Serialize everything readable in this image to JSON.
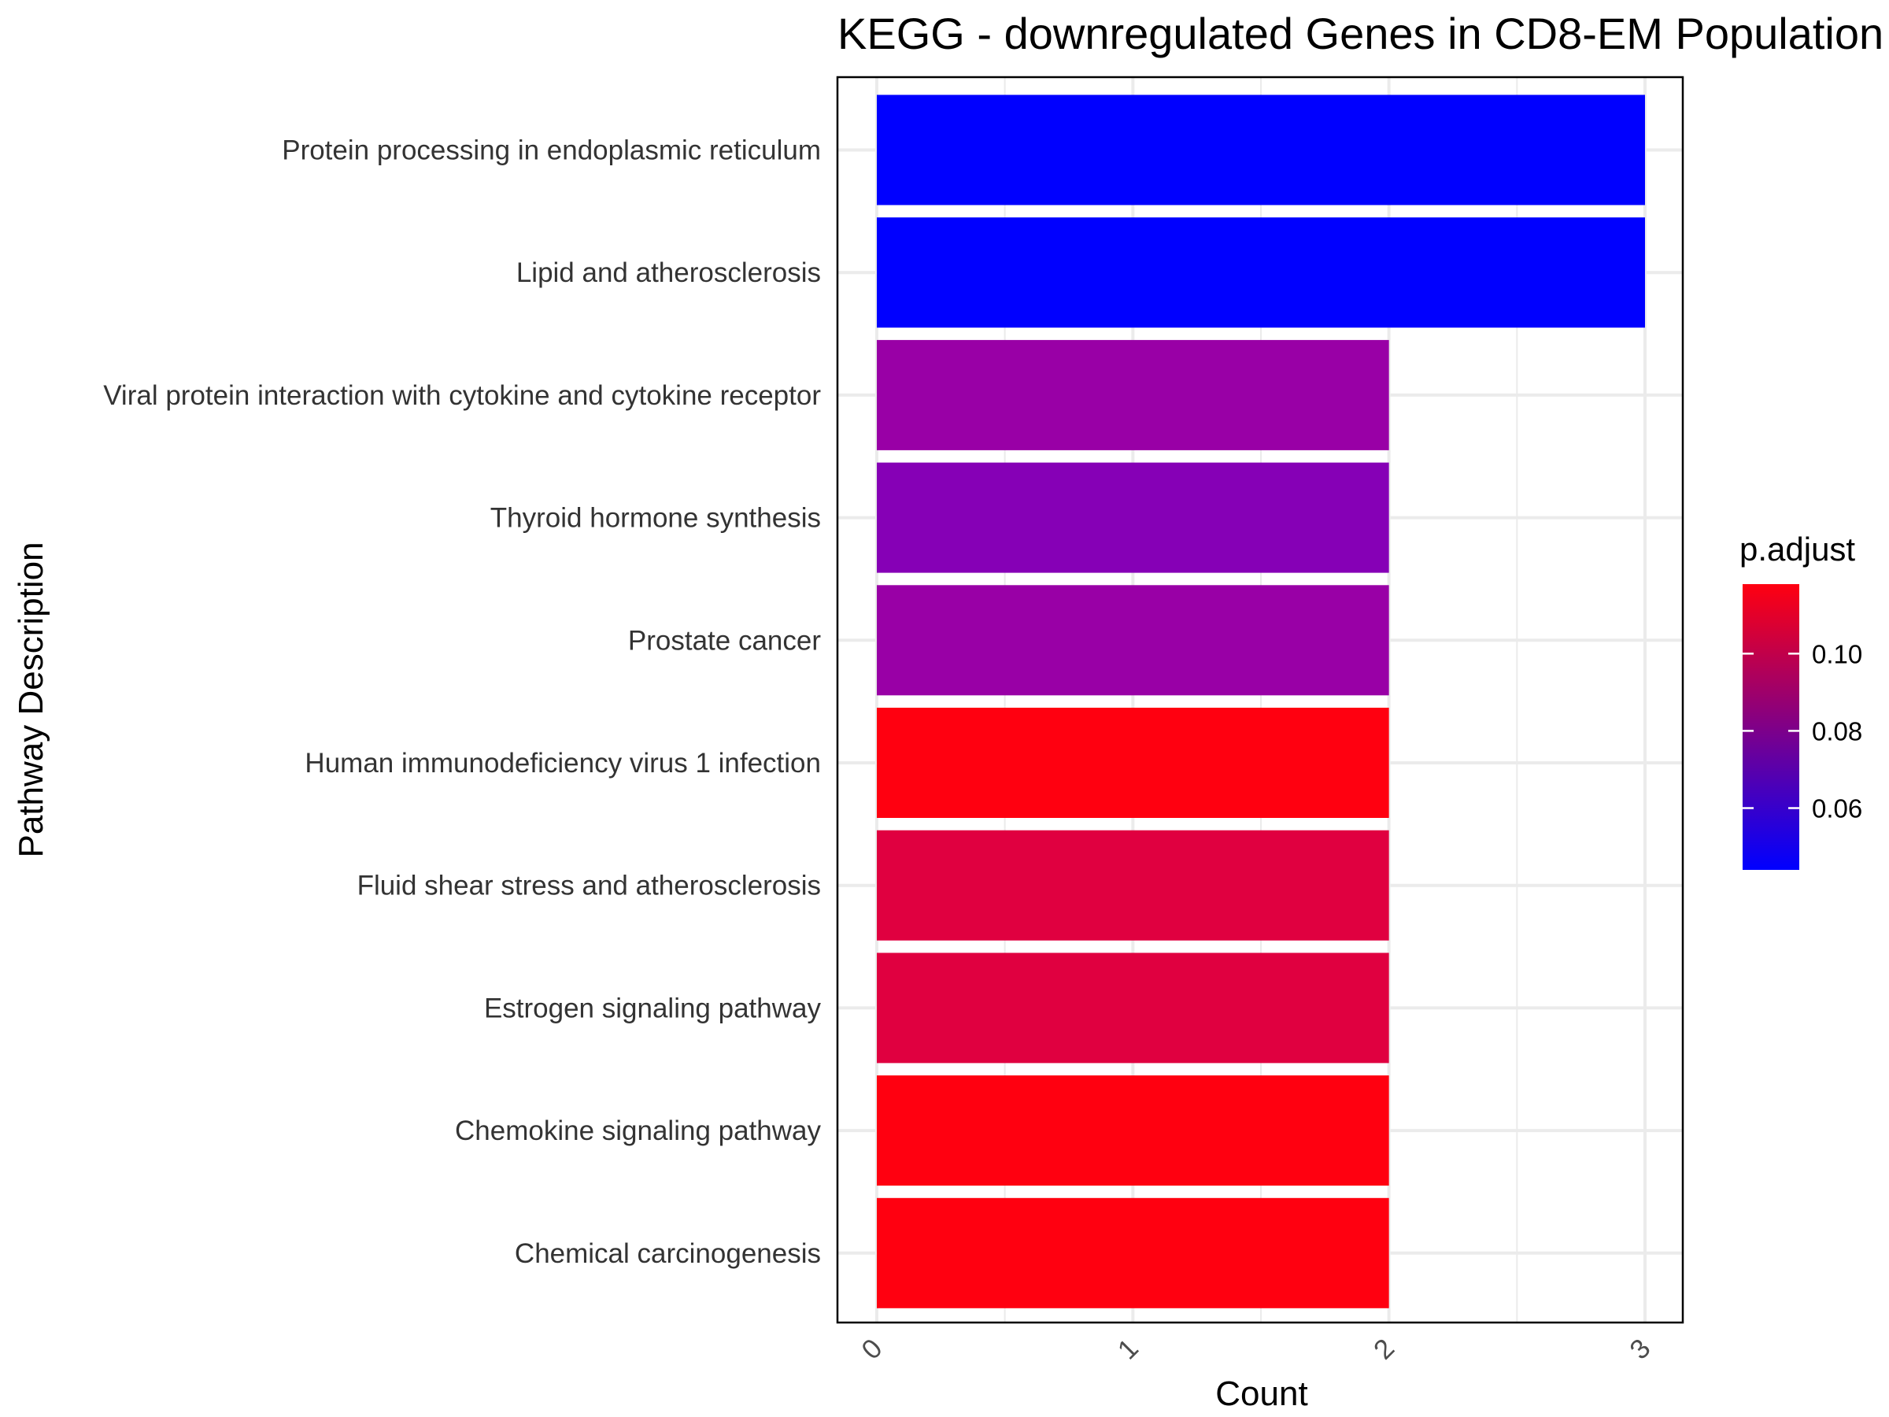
{
  "chart_data": {
    "type": "bar",
    "orientation": "horizontal",
    "title": "KEGG - downregulated Genes in CD8-EM Population",
    "xlabel": "Count",
    "ylabel": "Pathway Description",
    "xlim": [
      0,
      3
    ],
    "xticks": [
      "0",
      "1",
      "2",
      "3"
    ],
    "grid": true,
    "categories": [
      "Protein processing in endoplasmic reticulum",
      "Lipid and atherosclerosis",
      "Viral protein interaction with cytokine and cytokine receptor",
      "Thyroid hormone synthesis",
      "Prostate cancer",
      "Human immunodeficiency virus 1 infection",
      "Fluid shear stress and atherosclerosis",
      "Estrogen signaling pathway",
      "Chemokine signaling pathway",
      "Chemical carcinogenesis"
    ],
    "values": [
      3,
      3,
      2,
      2,
      2,
      2,
      2,
      2,
      2,
      2
    ],
    "p_adjust": [
      0.044,
      0.044,
      0.072,
      0.067,
      0.072,
      0.118,
      0.102,
      0.102,
      0.118,
      0.118
    ],
    "bar_colors": [
      "#0000ff",
      "#0000ff",
      "#9900a6",
      "#8600b6",
      "#9900a6",
      "#ff0010",
      "#e00040",
      "#e00040",
      "#ff0010",
      "#ff0010"
    ],
    "legend": {
      "title": "p.adjust",
      "position": "right",
      "range": [
        0.044,
        0.118
      ],
      "ticks": [
        "0.10",
        "0.08",
        "0.06"
      ],
      "tick_values": [
        0.1,
        0.08,
        0.06
      ],
      "color_low": "#0000ff",
      "color_high": "#ff0010"
    }
  }
}
